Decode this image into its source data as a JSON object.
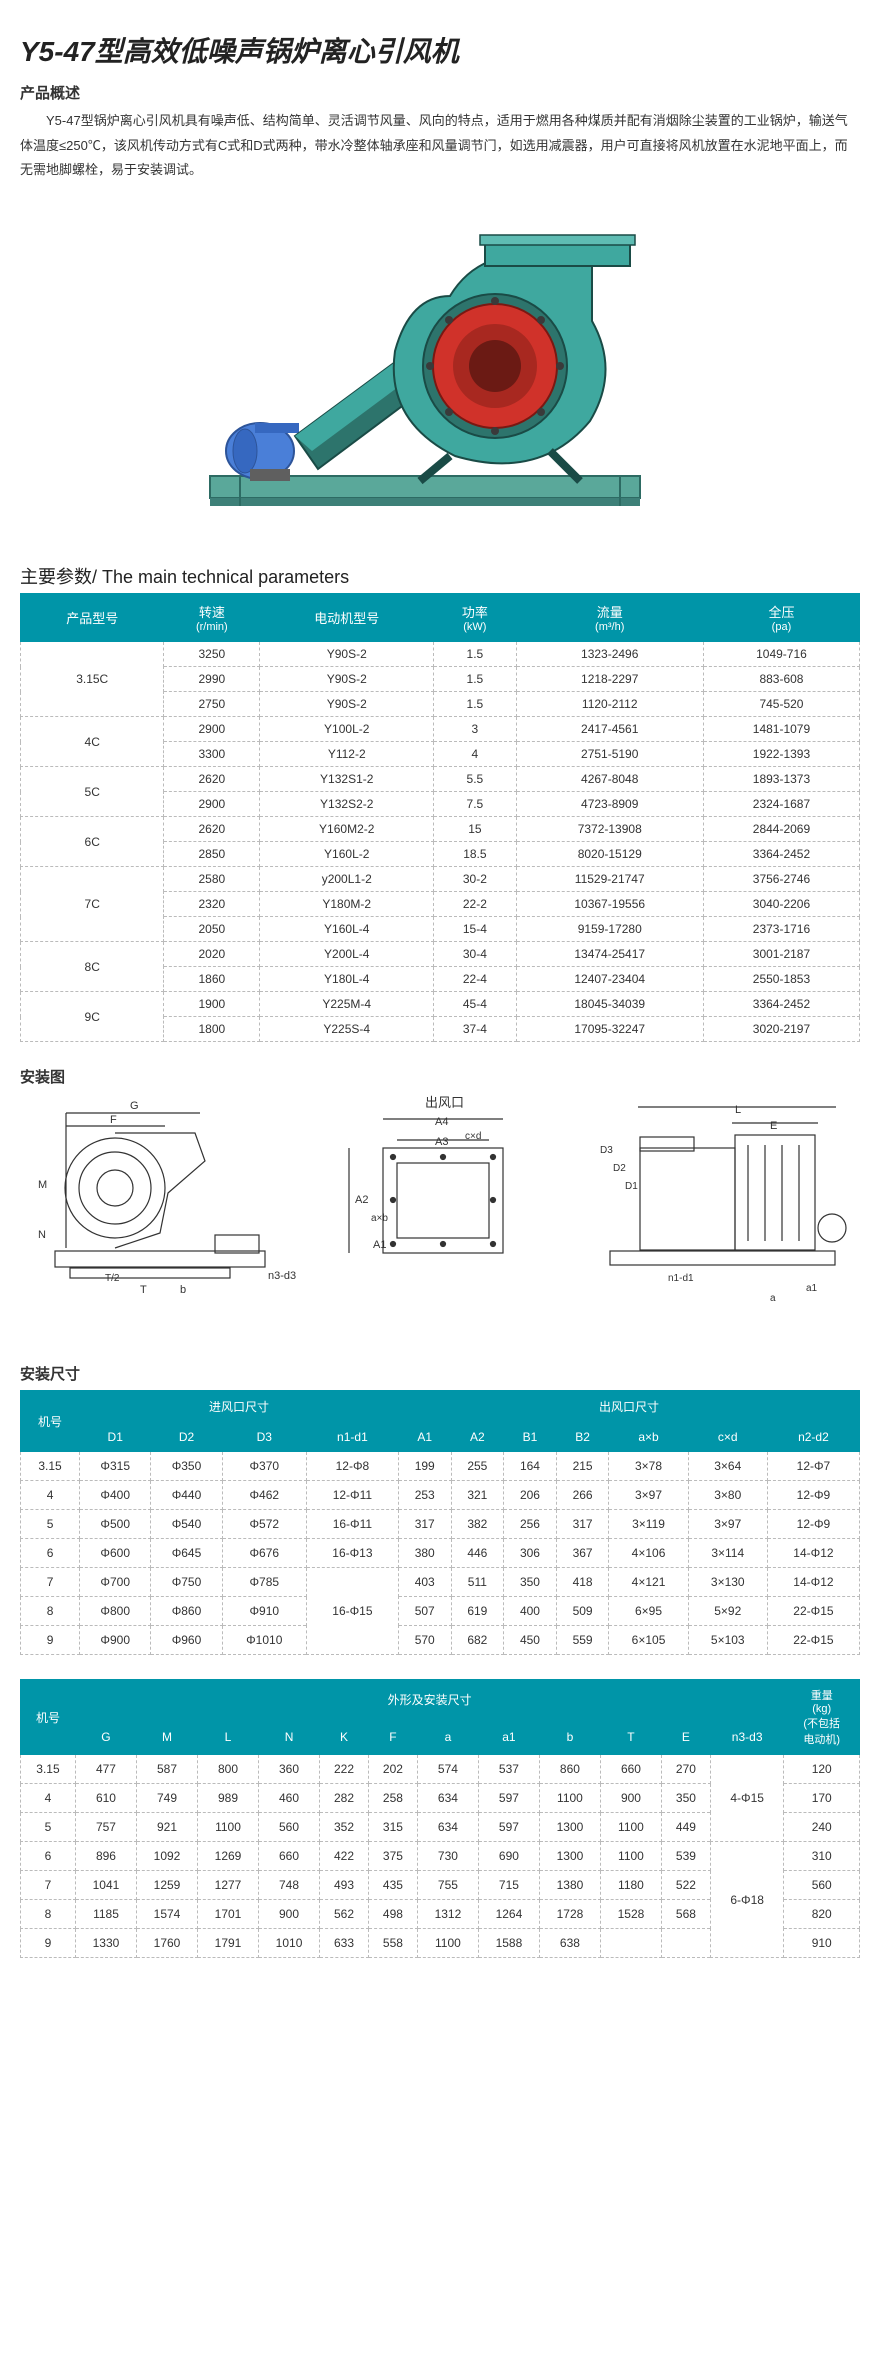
{
  "title": "Y5-47型高效低噪声锅炉离心引风机",
  "overview_label": "产品概述",
  "overview_text": "Y5-47型锅炉离心引风机具有噪声低、结构简单、灵活调节风量、风向的特点，适用于燃用各种煤质并配有消烟除尘装置的工业锅炉，输送气体温度≤250℃，该风机传动方式有C式和D式两种，带水冷整体轴承座和风量调节门，如选用减震器，用户可直接将风机放置在水泥地平面上，而无需地脚螺栓，易于安装调试。",
  "params_title": "主要参数/ The main technical parameters",
  "params_headers": [
    {
      "zh": "产品型号",
      "en": ""
    },
    {
      "zh": "转速",
      "en": "(r/min)"
    },
    {
      "zh": "电动机型号",
      "en": ""
    },
    {
      "zh": "功率",
      "en": "(kW)"
    },
    {
      "zh": "流量",
      "en": "(m³/h)"
    },
    {
      "zh": "全压",
      "en": "(pa)"
    }
  ],
  "params_groups": [
    {
      "model": "3.15C",
      "rows": [
        [
          "3250",
          "Y90S-2",
          "1.5",
          "1323-2496",
          "1049-716"
        ],
        [
          "2990",
          "Y90S-2",
          "1.5",
          "1218-2297",
          "883-608"
        ],
        [
          "2750",
          "Y90S-2",
          "1.5",
          "1120-2112",
          "745-520"
        ]
      ]
    },
    {
      "model": "4C",
      "rows": [
        [
          "2900",
          "Y100L-2",
          "3",
          "2417-4561",
          "1481-1079"
        ],
        [
          "3300",
          "Y112-2",
          "4",
          "2751-5190",
          "1922-1393"
        ]
      ]
    },
    {
      "model": "5C",
      "rows": [
        [
          "2620",
          "Y132S1-2",
          "5.5",
          "4267-8048",
          "1893-1373"
        ],
        [
          "2900",
          "Y132S2-2",
          "7.5",
          "4723-8909",
          "2324-1687"
        ]
      ]
    },
    {
      "model": "6C",
      "rows": [
        [
          "2620",
          "Y160M2-2",
          "15",
          "7372-13908",
          "2844-2069"
        ],
        [
          "2850",
          "Y160L-2",
          "18.5",
          "8020-15129",
          "3364-2452"
        ]
      ]
    },
    {
      "model": "7C",
      "rows": [
        [
          "2580",
          "y200L1-2",
          "30-2",
          "11529-21747",
          "3756-2746"
        ],
        [
          "2320",
          "Y180M-2",
          "22-2",
          "10367-19556",
          "3040-2206"
        ],
        [
          "2050",
          "Y160L-4",
          "15-4",
          "9159-17280",
          "2373-1716"
        ]
      ]
    },
    {
      "model": "8C",
      "rows": [
        [
          "2020",
          "Y200L-4",
          "30-4",
          "13474-25417",
          "3001-2187"
        ],
        [
          "1860",
          "Y180L-4",
          "22-4",
          "12407-23404",
          "2550-1853"
        ]
      ]
    },
    {
      "model": "9C",
      "rows": [
        [
          "1900",
          "Y225M-4",
          "45-4",
          "18045-34039",
          "3364-2452"
        ],
        [
          "1800",
          "Y225S-4",
          "37-4",
          "17095-32247",
          "3020-2197"
        ]
      ]
    }
  ],
  "install_diagram_label": "安装图",
  "diagram_labels": {
    "outlet": "出风口",
    "dims1": [
      "G",
      "F",
      "M",
      "N",
      "T",
      "T/2",
      "b",
      "n3-d3"
    ],
    "dims2": [
      "A4",
      "c×d",
      "A3",
      "A2",
      "A1",
      "a×b"
    ],
    "dims3": [
      "L",
      "E",
      "D3",
      "D2",
      "D1",
      "n1-d1",
      "a1",
      "a"
    ]
  },
  "install_dim_label": "安装尺寸",
  "install_dim_headers": {
    "group1": "进风口尺寸",
    "group2": "出风口尺寸",
    "model": "机号",
    "cols1": [
      "D1",
      "D2",
      "D3",
      "n1-d1"
    ],
    "cols2": [
      "A1",
      "A2",
      "B1",
      "B2",
      "a×b",
      "c×d",
      "n2-d2"
    ]
  },
  "install_dim_rows": [
    {
      "m": "3.15",
      "d": [
        "Φ315",
        "Φ350",
        "Φ370",
        "12-Φ8",
        "199",
        "255",
        "164",
        "215",
        "3×78",
        "3×64",
        "12-Φ7"
      ]
    },
    {
      "m": "4",
      "d": [
        "Φ400",
        "Φ440",
        "Φ462",
        "12-Φ11",
        "253",
        "321",
        "206",
        "266",
        "3×97",
        "3×80",
        "12-Φ9"
      ]
    },
    {
      "m": "5",
      "d": [
        "Φ500",
        "Φ540",
        "Φ572",
        "16-Φ11",
        "317",
        "382",
        "256",
        "317",
        "3×119",
        "3×97",
        "12-Φ9"
      ]
    },
    {
      "m": "6",
      "d": [
        "Φ600",
        "Φ645",
        "Φ676",
        "16-Φ13",
        "380",
        "446",
        "306",
        "367",
        "4×106",
        "3×114",
        "14-Φ12"
      ]
    },
    {
      "m": "7",
      "d": [
        "Φ700",
        "Φ750",
        "Φ785",
        "",
        "403",
        "511",
        "350",
        "418",
        "4×121",
        "3×130",
        "14-Φ12"
      ],
      "n1span": true
    },
    {
      "m": "8",
      "d": [
        "Φ800",
        "Φ860",
        "Φ910",
        "16-Φ15",
        "507",
        "619",
        "400",
        "509",
        "6×95",
        "5×92",
        "22-Φ15"
      ]
    },
    {
      "m": "9",
      "d": [
        "Φ900",
        "Φ960",
        "Φ1010",
        "",
        "570",
        "682",
        "450",
        "559",
        "6×105",
        "5×103",
        "22-Φ15"
      ]
    }
  ],
  "shape_dim_headers": {
    "model": "机号",
    "group": "外形及安装尺寸",
    "weight": "重量\n(kg)\n(不包括\n电动机)",
    "cols": [
      "G",
      "M",
      "L",
      "N",
      "K",
      "F",
      "a",
      "a1",
      "b",
      "T",
      "E",
      "n3-d3"
    ]
  },
  "shape_dim_rows": [
    {
      "m": "3.15",
      "d": [
        "477",
        "587",
        "800",
        "360",
        "222",
        "202",
        "574",
        "537",
        "860",
        "660",
        "270",
        "",
        "120"
      ],
      "n3span": true
    },
    {
      "m": "4",
      "d": [
        "610",
        "749",
        "989",
        "460",
        "282",
        "258",
        "634",
        "597",
        "1100",
        "900",
        "350",
        "4-Φ15",
        "170"
      ]
    },
    {
      "m": "5",
      "d": [
        "757",
        "921",
        "1100",
        "560",
        "352",
        "315",
        "634",
        "597",
        "1300",
        "1100",
        "449",
        "",
        "240"
      ]
    },
    {
      "m": "6",
      "d": [
        "896",
        "1092",
        "1269",
        "660",
        "422",
        "375",
        "730",
        "690",
        "1300",
        "1100",
        "539",
        "",
        "310"
      ]
    },
    {
      "m": "7",
      "d": [
        "1041",
        "1259",
        "1277",
        "748",
        "493",
        "435",
        "755",
        "715",
        "1380",
        "1180",
        "522",
        "6-Φ18",
        "560"
      ]
    },
    {
      "m": "8",
      "d": [
        "1185",
        "1574",
        "1701",
        "900",
        "562",
        "498",
        "1312",
        "1264",
        "1728",
        "1528",
        "568",
        "",
        "820"
      ]
    },
    {
      "m": "9",
      "d": [
        "1330",
        "1760",
        "1791",
        "1010",
        "633",
        "558",
        "1100",
        "1588",
        "638",
        "",
        "",
        "",
        "910"
      ]
    }
  ],
  "colors": {
    "header_bg": "#0095a8",
    "header_fg": "#ffffff",
    "border": "#bbbbbb",
    "fan_body": "#3fa89f",
    "fan_inlet": "#d0322a",
    "motor": "#4a7fd8",
    "base": "#5aa89a"
  }
}
